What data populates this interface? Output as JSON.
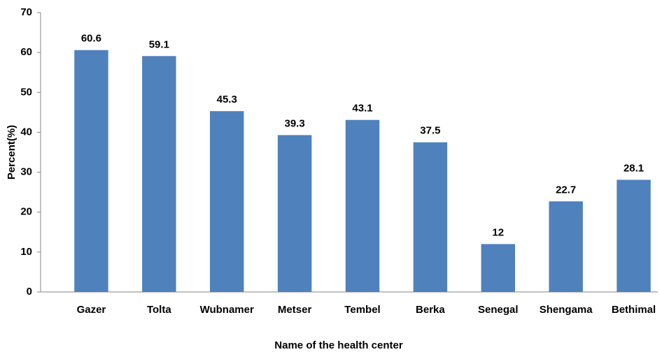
{
  "chart_data": {
    "type": "bar",
    "xlabel": "Name of the health center",
    "ylabel": "Percent(%)",
    "categories": [
      "Gazer",
      "Tolta",
      "Wubnamer",
      "Metser",
      "Tembel",
      "Berka",
      "Senegal",
      "Shengama",
      "Bethimal"
    ],
    "values": [
      60.6,
      59.1,
      45.3,
      39.3,
      43.1,
      37.5,
      12,
      22.7,
      28.1
    ],
    "color": "#4f81bd",
    "ylim": [
      0,
      70
    ],
    "yticks": [
      0,
      10,
      20,
      30,
      40,
      50,
      60,
      70
    ],
    "grid": false
  }
}
